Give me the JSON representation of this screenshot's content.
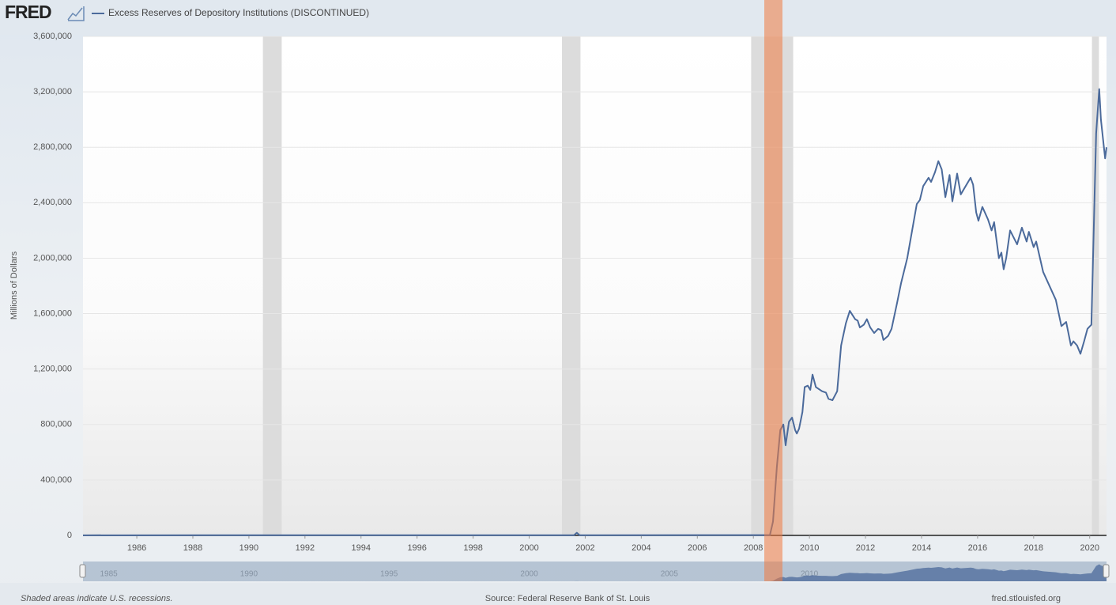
{
  "chart_data": {
    "type": "line",
    "logo": "FRED",
    "ylabel": "Millions of Dollars",
    "note": "Shaded areas indicate U.S. recessions.",
    "source": "Source: Federal Reserve Bank of St. Louis",
    "site": "fred.stlouisfed.org",
    "xlim": [
      1984.08,
      2020.6
    ],
    "xticks": [
      1986,
      1988,
      1990,
      1992,
      1994,
      1996,
      1998,
      2000,
      2002,
      2004,
      2006,
      2008,
      2010,
      2012,
      2014,
      2016,
      2018,
      2020
    ],
    "navigator_xticks": [
      1985,
      1990,
      1995,
      2000,
      2005,
      2010
    ],
    "ylim": [
      0,
      3600000
    ],
    "yticks": [
      0,
      {
        "value": 400000,
        "label": "400,000"
      },
      {
        "value": 800000,
        "label": "800,000"
      },
      {
        "value": 1200000,
        "label": "1,200,000"
      },
      {
        "value": 1600000,
        "label": "1,600,000"
      },
      {
        "value": 2000000,
        "label": "2,000,000"
      },
      {
        "value": 2400000,
        "label": "2,400,000"
      },
      {
        "value": 2800000,
        "label": "2,800,000"
      },
      {
        "value": 3200000,
        "label": "3,200,000"
      },
      {
        "value": 3600000,
        "label": "3,600,000"
      }
    ],
    "grid": true,
    "recessions": [
      [
        1990.5,
        1991.17
      ],
      [
        2001.17,
        2001.83
      ],
      [
        2007.92,
        2009.42
      ],
      [
        2020.08,
        2020.33
      ]
    ],
    "series": [
      {
        "name": "Excess Reserves of Depository Institutions (DISCONTINUED)",
        "color": "#4b6a9b",
        "x": [
          1984.08,
          1990.9,
          2001.6,
          2001.7,
          2001.8,
          2008.59,
          2008.7,
          2008.84,
          2008.96,
          2009.07,
          2009.15,
          2009.27,
          2009.38,
          2009.49,
          2009.55,
          2009.63,
          2009.75,
          2009.83,
          2009.94,
          2010.03,
          2010.11,
          2010.23,
          2010.45,
          2010.59,
          2010.68,
          2010.82,
          2010.99,
          2011.13,
          2011.3,
          2011.44,
          2011.63,
          2011.72,
          2011.8,
          2011.94,
          2012.05,
          2012.17,
          2012.31,
          2012.45,
          2012.56,
          2012.64,
          2012.81,
          2012.93,
          2013.13,
          2013.27,
          2013.49,
          2013.83,
          2013.94,
          2014.06,
          2014.25,
          2014.34,
          2014.48,
          2014.6,
          2014.72,
          2014.85,
          2015.0,
          2015.1,
          2015.27,
          2015.4,
          2015.75,
          2015.84,
          2015.95,
          2016.03,
          2016.17,
          2016.37,
          2016.5,
          2016.59,
          2016.76,
          2016.85,
          2016.93,
          2017.02,
          2017.16,
          2017.41,
          2017.58,
          2017.75,
          2017.83,
          2018.0,
          2018.09,
          2018.34,
          2018.79,
          2018.99,
          2019.16,
          2019.33,
          2019.42,
          2019.55,
          2019.67,
          2019.8,
          2019.92,
          2020.06,
          2020.23,
          2020.34,
          2020.4,
          2020.55,
          2020.6
        ],
        "values": [
          1000,
          1500,
          1500,
          19000,
          1500,
          2000,
          100000,
          500000,
          760000,
          800000,
          650000,
          820000,
          850000,
          760000,
          735000,
          770000,
          890000,
          1070000,
          1080000,
          1050000,
          1160000,
          1070000,
          1040000,
          1030000,
          985000,
          975000,
          1040000,
          1370000,
          1530000,
          1620000,
          1560000,
          1550000,
          1500000,
          1520000,
          1560000,
          1500000,
          1460000,
          1490000,
          1480000,
          1410000,
          1440000,
          1490000,
          1680000,
          1820000,
          2000000,
          2390000,
          2420000,
          2520000,
          2580000,
          2550000,
          2620000,
          2700000,
          2640000,
          2440000,
          2600000,
          2410000,
          2610000,
          2460000,
          2580000,
          2530000,
          2330000,
          2270000,
          2370000,
          2280000,
          2200000,
          2260000,
          2000000,
          2040000,
          1920000,
          2000000,
          2200000,
          2100000,
          2220000,
          2120000,
          2190000,
          2080000,
          2120000,
          1900000,
          1700000,
          1510000,
          1540000,
          1370000,
          1400000,
          1370000,
          1310000,
          1400000,
          1490000,
          1520000,
          2900000,
          3220000,
          3000000,
          2720000,
          2800000
        ]
      }
    ]
  }
}
